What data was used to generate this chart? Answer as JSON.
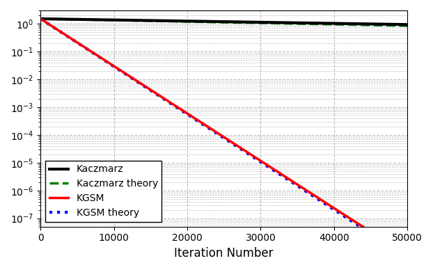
{
  "x_max": 50000,
  "n_points": 1000,
  "kaczmarz_start": 1.5,
  "kaczmarz_rate": 9.5e-06,
  "kaczmarz_theory_rate": 1.15e-05,
  "kgsm_start": 1.5,
  "kgsm_rate": 0.000392,
  "kgsm_theory_rate": 0.000395,
  "kaczmarz_color": "#000000",
  "kaczmarz_theory_color": "#008000",
  "kgsm_color": "#ff0000",
  "kgsm_theory_color": "#0000ff",
  "xlabel": "Iteration Number",
  "ylim_bottom": 5e-08,
  "ylim_top": 3.0,
  "xlim_left": 0,
  "xlim_right": 50000,
  "legend_entries": [
    "Kaczmarz",
    "Kaczmarz theory",
    "KGSM",
    "KGSM theory"
  ],
  "kaczmarz_lw": 3.0,
  "kgsm_lw": 2.5,
  "theory_kacz_lw": 2.5,
  "theory_kgsm_lw": 2.5,
  "figsize": [
    6.22,
    3.88
  ],
  "dpi": 100,
  "grid_color": "#b0b0b0",
  "grid_style": "--",
  "grid_alpha": 0.8
}
